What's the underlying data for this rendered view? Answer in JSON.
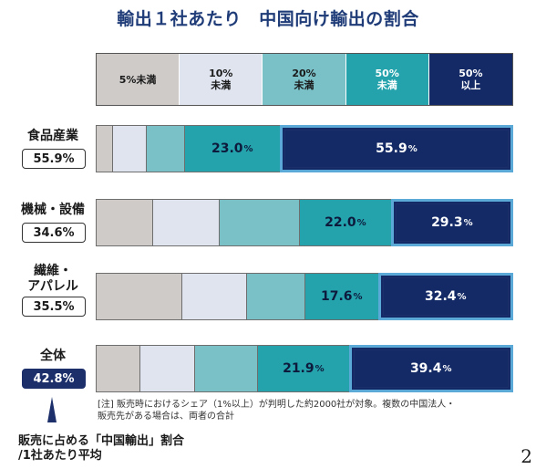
{
  "title": "輸出１社あたり　中国向け輸出の割合",
  "colors": [
    "#cfcbc9",
    "#dfe4ef",
    "#79c0c7",
    "#24a3ad",
    "#142a66"
  ],
  "legend": [
    {
      "label": "5%未満"
    },
    {
      "label": "10%\n未満"
    },
    {
      "label": "20%\n未満"
    },
    {
      "label": "50%\n未満"
    },
    {
      "label": "50%\n以上"
    }
  ],
  "chart_data": {
    "type": "bar",
    "orientation": "horizontal-stacked-100",
    "series_names": [
      "5%未満",
      "10%未満",
      "20%未満",
      "50%未満",
      "50%以上"
    ],
    "categories": [
      {
        "name": "食品産業",
        "average": "55.9%",
        "values": [
          4.0,
          8.0,
          9.1,
          23.0,
          55.9
        ],
        "labels": [
          "",
          "",
          "",
          "23.0",
          "55.9"
        ]
      },
      {
        "name": "機械・設備",
        "average": "34.6%",
        "values": [
          13.5,
          16.0,
          19.2,
          22.0,
          29.3
        ],
        "labels": [
          "",
          "",
          "",
          "22.0",
          "29.3"
        ]
      },
      {
        "name": "繊維・\nアパレル",
        "average": "35.5%",
        "values": [
          20.5,
          15.5,
          14.0,
          17.6,
          32.4
        ],
        "labels": [
          "",
          "",
          "",
          "17.6",
          "32.4"
        ]
      },
      {
        "name": "全体",
        "average": "42.8%",
        "values": [
          10.5,
          13.0,
          15.2,
          21.9,
          39.4
        ],
        "labels": [
          "",
          "",
          "",
          "21.9",
          "39.4"
        ]
      }
    ]
  },
  "note": "[注]  販売時におけるシェア（1%以上）が判明した約2000社が対象。複数の中国法人・\n販売先がある場合は、両者の合計",
  "avg_caption_line1": "販売に占める「中国輸出」割合",
  "avg_caption_line2": "/1社あたり平均",
  "page_number": "2"
}
